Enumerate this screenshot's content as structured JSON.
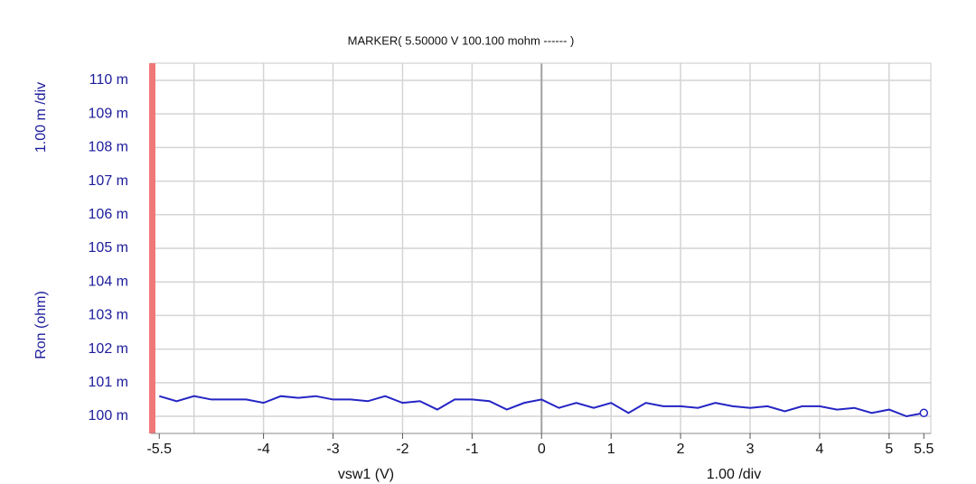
{
  "chart_data": {
    "type": "line",
    "title": "MARKER(  5.50000 V   100.100 mohm  ------ )",
    "y_div_label": "1.00 m /div",
    "ylabel": "Ron (ohm)",
    "xlabel": "vsw1 (V)",
    "x_div_label": "1.00  /div",
    "x": [
      -5.5,
      -5.25,
      -5,
      -4.75,
      -4.5,
      -4.25,
      -4,
      -3.75,
      -3.5,
      -3.25,
      -3,
      -2.75,
      -2.5,
      -2.25,
      -2,
      -1.75,
      -1.5,
      -1.25,
      -1,
      -0.75,
      -0.5,
      -0.25,
      0,
      0.25,
      0.5,
      0.75,
      1,
      1.25,
      1.5,
      1.75,
      2,
      2.25,
      2.5,
      2.75,
      3,
      3.25,
      3.5,
      3.75,
      4,
      4.25,
      4.5,
      4.75,
      5,
      5.25,
      5.5
    ],
    "series": [
      {
        "name": "Ron",
        "color": "#2424c4",
        "values": [
          100.6,
          100.45,
          100.6,
          100.5,
          100.5,
          100.5,
          100.4,
          100.6,
          100.55,
          100.6,
          100.5,
          100.5,
          100.45,
          100.6,
          100.4,
          100.45,
          100.2,
          100.5,
          100.5,
          100.45,
          100.2,
          100.4,
          100.5,
          100.25,
          100.4,
          100.25,
          100.4,
          100.1,
          100.4,
          100.3,
          100.3,
          100.25,
          100.4,
          100.3,
          100.25,
          100.3,
          100.15,
          100.3,
          100.3,
          100.2,
          100.25,
          100.1,
          100.2,
          100.0,
          100.1
        ]
      }
    ],
    "xlim": [
      -5.62,
      5.6
    ],
    "xticks": [
      -5.5,
      -4,
      -3,
      -2,
      -1,
      0,
      1,
      2,
      3,
      4,
      5,
      5.5
    ],
    "xgrid": [
      -5,
      -4,
      -3,
      -2,
      -1,
      0,
      1,
      2,
      3,
      4,
      5
    ],
    "ylim": [
      99.49,
      110.51
    ],
    "yticks": [
      {
        "value": 100,
        "label": "100 m"
      },
      {
        "value": 101,
        "label": "101 m"
      },
      {
        "value": 102,
        "label": "102 m"
      },
      {
        "value": 103,
        "label": "103 m"
      },
      {
        "value": 104,
        "label": "104 m"
      },
      {
        "value": 105,
        "label": "105 m"
      },
      {
        "value": 106,
        "label": "106 m"
      },
      {
        "value": 107,
        "label": "107 m"
      },
      {
        "value": 108,
        "label": "108 m"
      },
      {
        "value": 109,
        "label": "109 m"
      },
      {
        "value": 110,
        "label": "110 m"
      }
    ],
    "grid": true
  }
}
